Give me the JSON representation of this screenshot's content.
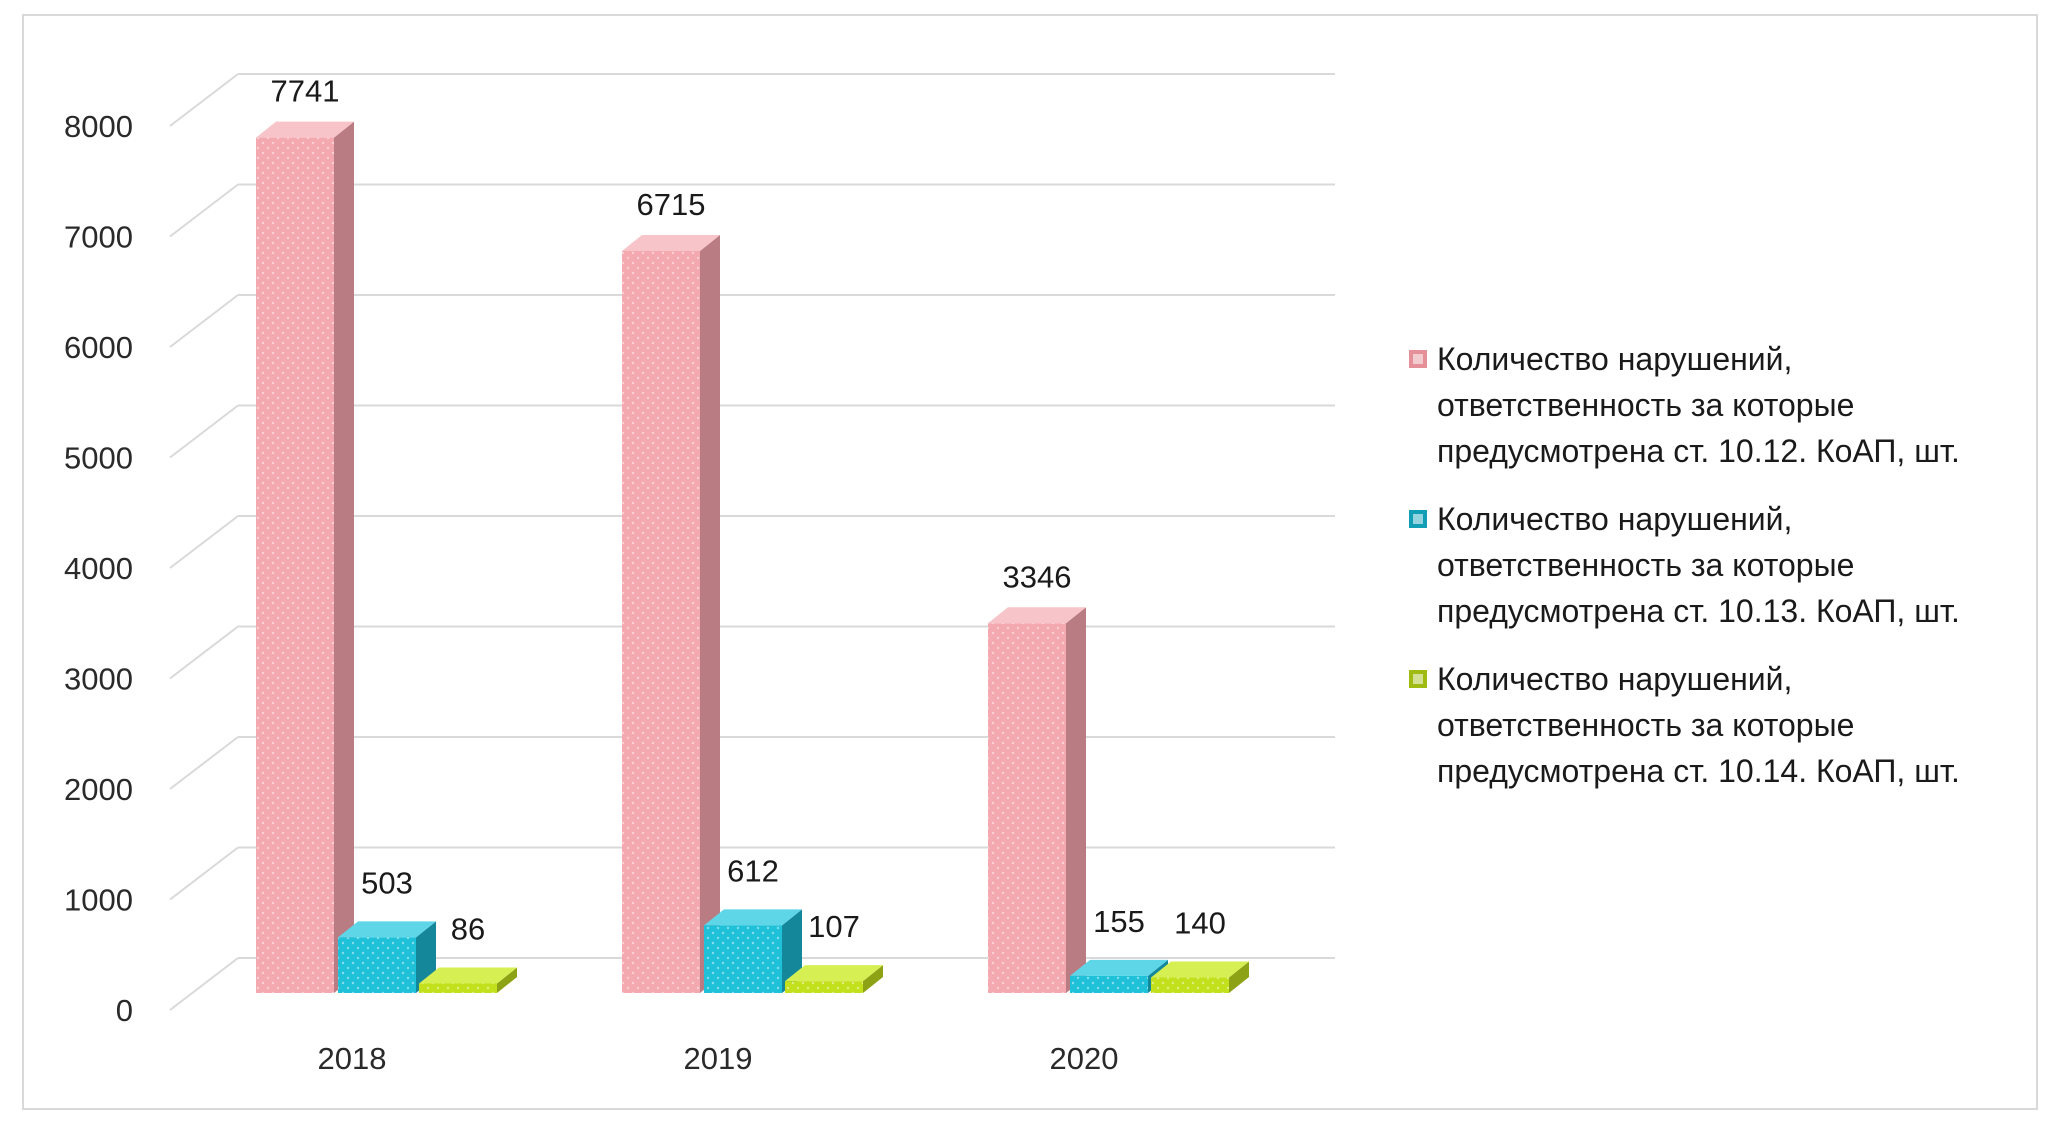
{
  "chart_data": {
    "type": "bar",
    "categories": [
      "2018",
      "2019",
      "2020"
    ],
    "series": [
      {
        "name": "Количество нарушений, ответственность за которые предусмотрена ст. 10.12. КоАП, шт.",
        "values": [
          7741,
          6715,
          3346
        ],
        "value_labels": [
          "7741",
          "6715",
          "3346"
        ],
        "color": "#f4a9b0"
      },
      {
        "name": "Количество нарушений, ответственность за которые предусмотрена ст. 10.13. КоАП, шт.",
        "values": [
          503,
          612,
          155
        ],
        "value_labels": [
          "503",
          "612",
          "155"
        ],
        "color": "#1fc1d9"
      },
      {
        "name": "Количество нарушений, ответственность за которые предусмотрена ст. 10.14. КоАП, шт.",
        "values": [
          86,
          107,
          140
        ],
        "value_labels": [
          "86",
          "107",
          "140"
        ],
        "color": "#c2e01c"
      }
    ],
    "ylim": [
      0,
      8000
    ],
    "yticks": [
      "0",
      "1000",
      "2000",
      "3000",
      "4000",
      "5000",
      "6000",
      "7000",
      "8000"
    ],
    "grid": true,
    "legend_position": "right",
    "style": "3d-column"
  },
  "legend": {
    "item1": "Количество нарушений, ответственность за которые предусмотрена ст. 10.12. КоАП, шт.",
    "item2": "Количество нарушений, ответственность за которые предусмотрена ст. 10.13. КоАП, шт.",
    "item3": "Количество нарушений, ответственность за которые предусмотрена ст. 10.14. КоАП, шт."
  }
}
